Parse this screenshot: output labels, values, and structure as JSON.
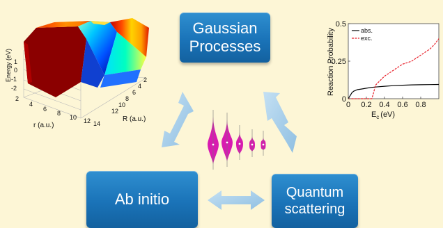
{
  "boxes": {
    "gaussian": [
      "Gaussian",
      "Processes"
    ],
    "abinitio": [
      "Ab initio"
    ],
    "quantum": [
      "Quantum",
      "scattering"
    ]
  },
  "surface_plot": {
    "zlabel": "Energy (eV)",
    "xlabel": "r (a.u.)",
    "ylabel": "R (a.u.)",
    "z_ticks": [
      "1",
      "0",
      "-1",
      "-2"
    ],
    "r_ticks": [
      "2",
      "4",
      "6",
      "8",
      "10",
      "12",
      "14"
    ],
    "R_ticks": [
      "2",
      "4",
      "6",
      "8",
      "10",
      "12"
    ]
  },
  "chart_data": {
    "type": "line",
    "xlabel": "E",
    "xlabel_sub": "c",
    "xlabel_unit": "(eV)",
    "ylabel": "Reaction Probability",
    "xlim": [
      0,
      1.0
    ],
    "ylim": [
      0,
      0.5
    ],
    "x_ticks": [
      0,
      0.2,
      0.4,
      0.6,
      0.8
    ],
    "x_tick_labels": [
      "0",
      "0.2",
      "0.4",
      "0.6",
      "0.8"
    ],
    "y_ticks": [
      0,
      0.25,
      0.5
    ],
    "y_tick_labels": [
      "0",
      "0.25",
      "0.5"
    ],
    "legend": "top-left",
    "series": [
      {
        "name": "abs.",
        "color": "#000000",
        "style": "solid",
        "x": [
          0.0,
          0.02,
          0.04,
          0.06,
          0.1,
          0.15,
          0.2,
          0.25,
          0.3,
          0.4,
          0.5,
          0.6,
          0.7,
          0.8,
          0.9,
          1.0
        ],
        "y": [
          0.0,
          0.02,
          0.04,
          0.05,
          0.06,
          0.065,
          0.07,
          0.075,
          0.078,
          0.083,
          0.087,
          0.09,
          0.092,
          0.093,
          0.094,
          0.095
        ]
      },
      {
        "name": "exc.",
        "color": "#e8202a",
        "style": "dashed",
        "x": [
          0.0,
          0.26,
          0.28,
          0.3,
          0.35,
          0.4,
          0.45,
          0.5,
          0.55,
          0.6,
          0.65,
          0.7,
          0.75,
          0.8,
          0.85,
          0.9,
          0.95,
          1.0
        ],
        "y": [
          0.0,
          0.0,
          0.04,
          0.09,
          0.12,
          0.15,
          0.17,
          0.19,
          0.21,
          0.23,
          0.24,
          0.25,
          0.27,
          0.29,
          0.31,
          0.33,
          0.36,
          0.4
        ]
      }
    ]
  },
  "violins": {
    "color": "#d81bb0",
    "count": 5
  },
  "colors": {
    "box_blue": "#1a73b8",
    "arrow_blue": "#9ac6e6",
    "background": "#fdf6d6"
  }
}
